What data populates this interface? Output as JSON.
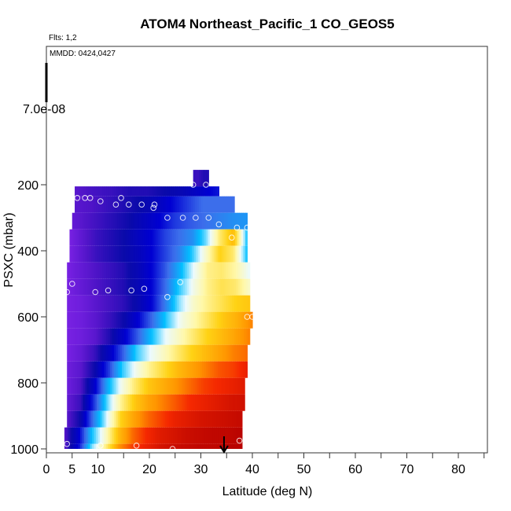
{
  "chart_data": {
    "type": "heatmap",
    "title": "ATOM4 Northeast_Pacific_1 CO_GEOS5",
    "flights_note": "Flts: 1,2",
    "dates_note": "MMDD: 0424,0427",
    "legend_value": "7.0e-08",
    "xlabel": "Latitude (deg N)",
    "ylabel": "PSXC (mbar)",
    "xlim": [
      0,
      85
    ],
    "ylim": [
      1000,
      0
    ],
    "x_ticks": [
      0,
      5,
      10,
      20,
      30,
      40,
      50,
      60,
      70,
      80
    ],
    "y_ticks": [
      200,
      400,
      600,
      800,
      1000
    ],
    "arrow_latitude": 34.5,
    "rows": [
      {
        "p_top": 155,
        "p_bot": 205,
        "lat_min": 28.5,
        "lat_max": 31.5,
        "values": [
          0.08,
          0.08,
          0.1,
          0.1
        ]
      },
      {
        "p_top": 205,
        "p_bot": 235,
        "lat_min": 5.5,
        "lat_max": 33.5,
        "values": [
          0.05,
          0.07,
          0.08,
          0.1,
          0.1,
          0.12,
          0.14,
          0.18,
          0.22
        ]
      },
      {
        "p_top": 235,
        "p_bot": 285,
        "lat_min": 5.5,
        "lat_max": 36.5,
        "values": [
          0.05,
          0.06,
          0.08,
          0.1,
          0.12,
          0.15,
          0.2,
          0.25,
          0.3,
          0.3,
          0.3
        ]
      },
      {
        "p_top": 285,
        "p_bot": 335,
        "lat_min": 5,
        "lat_max": 39,
        "values": [
          0.04,
          0.06,
          0.08,
          0.1,
          0.12,
          0.16,
          0.2,
          0.25,
          0.28,
          0.3,
          0.32,
          0.34,
          0.35
        ]
      },
      {
        "p_top": 335,
        "p_bot": 385,
        "lat_min": 4.5,
        "lat_max": 39,
        "values": [
          0.02,
          0.05,
          0.08,
          0.1,
          0.12,
          0.16,
          0.2,
          0.26,
          0.3,
          0.34,
          0.45,
          0.62,
          0.72,
          0.4
        ]
      },
      {
        "p_top": 385,
        "p_bot": 435,
        "lat_min": 4.5,
        "lat_max": 39,
        "values": [
          0.02,
          0.05,
          0.08,
          0.1,
          0.12,
          0.15,
          0.2,
          0.26,
          0.32,
          0.42,
          0.55,
          0.68,
          0.62,
          0.4
        ]
      },
      {
        "p_top": 435,
        "p_bot": 485,
        "lat_min": 4,
        "lat_max": 39.5,
        "values": [
          0.02,
          0.04,
          0.06,
          0.08,
          0.1,
          0.14,
          0.2,
          0.28,
          0.38,
          0.5,
          0.6,
          0.62,
          0.58,
          0.5
        ]
      },
      {
        "p_top": 485,
        "p_bot": 535,
        "lat_min": 4,
        "lat_max": 39.5,
        "values": [
          0.02,
          0.04,
          0.06,
          0.08,
          0.1,
          0.14,
          0.2,
          0.3,
          0.42,
          0.52,
          0.6,
          0.64,
          0.62,
          0.55
        ]
      },
      {
        "p_top": 535,
        "p_bot": 585,
        "lat_min": 4,
        "lat_max": 39.5,
        "values": [
          0.02,
          0.03,
          0.05,
          0.07,
          0.09,
          0.13,
          0.2,
          0.32,
          0.46,
          0.55,
          0.6,
          0.64,
          0.68,
          0.7
        ]
      },
      {
        "p_top": 585,
        "p_bot": 635,
        "lat_min": 4,
        "lat_max": 40,
        "values": [
          0.02,
          0.03,
          0.05,
          0.08,
          0.12,
          0.2,
          0.3,
          0.42,
          0.52,
          0.58,
          0.64,
          0.7,
          0.74,
          0.8
        ]
      },
      {
        "p_top": 635,
        "p_bot": 685,
        "lat_min": 4,
        "lat_max": 39.5,
        "values": [
          0.02,
          0.03,
          0.05,
          0.1,
          0.18,
          0.28,
          0.4,
          0.5,
          0.56,
          0.62,
          0.68,
          0.72,
          0.76,
          0.8
        ]
      },
      {
        "p_top": 685,
        "p_bot": 735,
        "lat_min": 4,
        "lat_max": 39,
        "values": [
          0.02,
          0.04,
          0.08,
          0.16,
          0.28,
          0.42,
          0.5,
          0.56,
          0.62,
          0.68,
          0.72,
          0.76,
          0.8,
          0.82
        ]
      },
      {
        "p_top": 735,
        "p_bot": 785,
        "lat_min": 4,
        "lat_max": 39,
        "values": [
          0.03,
          0.05,
          0.12,
          0.25,
          0.42,
          0.52,
          0.6,
          0.66,
          0.72,
          0.76,
          0.8,
          0.84,
          0.86,
          0.9
        ]
      },
      {
        "p_top": 785,
        "p_bot": 835,
        "lat_min": 4,
        "lat_max": 38.5,
        "values": [
          0.03,
          0.06,
          0.18,
          0.38,
          0.52,
          0.62,
          0.7,
          0.74,
          0.78,
          0.82,
          0.86,
          0.88,
          0.9,
          0.92
        ]
      },
      {
        "p_top": 835,
        "p_bot": 885,
        "lat_min": 4,
        "lat_max": 38.5,
        "values": [
          0.04,
          0.08,
          0.25,
          0.45,
          0.6,
          0.7,
          0.76,
          0.8,
          0.84,
          0.88,
          0.9,
          0.92,
          0.94,
          0.95
        ]
      },
      {
        "p_top": 885,
        "p_bot": 935,
        "lat_min": 4,
        "lat_max": 38,
        "values": [
          0.05,
          0.12,
          0.32,
          0.5,
          0.68,
          0.76,
          0.82,
          0.86,
          0.9,
          0.92,
          0.94,
          0.95,
          0.96,
          0.97
        ]
      },
      {
        "p_top": 935,
        "p_bot": 985,
        "lat_min": 3.5,
        "lat_max": 38,
        "values": [
          0.05,
          0.18,
          0.4,
          0.55,
          0.72,
          0.82,
          0.88,
          0.92,
          0.94,
          0.96,
          0.97,
          0.98,
          0.98,
          0.99
        ]
      },
      {
        "p_top": 985,
        "p_bot": 1000,
        "lat_min": 3.5,
        "lat_max": 38,
        "values": [
          0.05,
          0.2,
          0.45,
          0.6,
          0.78,
          0.86,
          0.9,
          0.94,
          0.96,
          0.97,
          0.98,
          0.98,
          0.99,
          0.99
        ]
      }
    ],
    "points": [
      {
        "lat": 28.5,
        "p": 200
      },
      {
        "lat": 31,
        "p": 200
      },
      {
        "lat": 6,
        "p": 240
      },
      {
        "lat": 7.5,
        "p": 240
      },
      {
        "lat": 8.5,
        "p": 240
      },
      {
        "lat": 10.5,
        "p": 250
      },
      {
        "lat": 13.5,
        "p": 260
      },
      {
        "lat": 14.5,
        "p": 240
      },
      {
        "lat": 16,
        "p": 260
      },
      {
        "lat": 18.5,
        "p": 260
      },
      {
        "lat": 21,
        "p": 260
      },
      {
        "lat": 20.8,
        "p": 270
      },
      {
        "lat": 23.5,
        "p": 300
      },
      {
        "lat": 26.5,
        "p": 300
      },
      {
        "lat": 29,
        "p": 300
      },
      {
        "lat": 31.5,
        "p": 300
      },
      {
        "lat": 33.5,
        "p": 320
      },
      {
        "lat": 37,
        "p": 330
      },
      {
        "lat": 39,
        "p": 330
      },
      {
        "lat": 36,
        "p": 360
      },
      {
        "lat": 5,
        "p": 500
      },
      {
        "lat": 4,
        "p": 525
      },
      {
        "lat": 9.5,
        "p": 525
      },
      {
        "lat": 12,
        "p": 520
      },
      {
        "lat": 16.5,
        "p": 520
      },
      {
        "lat": 19,
        "p": 515
      },
      {
        "lat": 23.5,
        "p": 540
      },
      {
        "lat": 26,
        "p": 495
      },
      {
        "lat": 39,
        "p": 600
      },
      {
        "lat": 40,
        "p": 600
      },
      {
        "lat": 4,
        "p": 985
      },
      {
        "lat": 10.5,
        "p": 990
      },
      {
        "lat": 17.5,
        "p": 990
      },
      {
        "lat": 24.5,
        "p": 1000
      },
      {
        "lat": 37.5,
        "p": 975
      }
    ]
  }
}
